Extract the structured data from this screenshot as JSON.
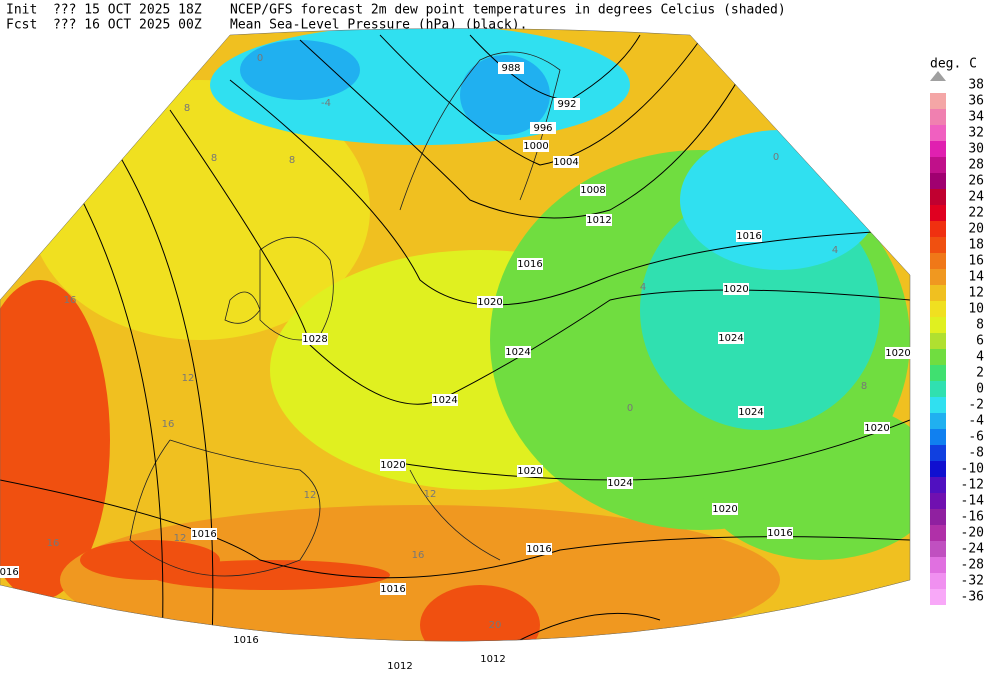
{
  "header": {
    "lines": [
      "Init  ??? 15 OCT 2025 18Z",
      "Fcst  ??? 16 OCT 2025 00Z"
    ],
    "description": [
      "NCEP/GFS forecast 2m dew point temperatures in degrees Celcius (shaded)",
      "Mean Sea-Level Pressure (hPa) (black)."
    ]
  },
  "legend": {
    "unit": "deg. C",
    "levels": [
      38,
      36,
      34,
      32,
      30,
      28,
      26,
      24,
      22,
      20,
      18,
      16,
      14,
      12,
      10,
      8,
      6,
      4,
      2,
      0,
      -2,
      -4,
      -6,
      -8,
      -10,
      -12,
      -14,
      -16,
      -20,
      -24,
      -28,
      -32,
      -36
    ],
    "colors": [
      "#a0a0a0",
      "#f4a6a6",
      "#f080b0",
      "#f060c0",
      "#e020b0",
      "#c0108a",
      "#a00070",
      "#c00030",
      "#e00020",
      "#f03010",
      "#f05010",
      "#f07818",
      "#f09820",
      "#f0c020",
      "#f0e020",
      "#e0f020",
      "#b0e030",
      "#70dd40",
      "#40e070",
      "#30e0b0",
      "#30e0f0",
      "#20b0f0",
      "#1080f0",
      "#1040e0",
      "#1010d0",
      "#5010c0",
      "#7010b0",
      "#9020a0",
      "#b030a8",
      "#c050c0",
      "#e070e0",
      "#f090f0",
      "#f8a8f8"
    ]
  },
  "map": {
    "pressure_labels": [
      988,
      992,
      996,
      1000,
      1004,
      1008,
      1012,
      1016,
      1016,
      1020,
      1020,
      1024,
      1024,
      1020,
      1028,
      1024,
      1024,
      1020,
      1020,
      1020,
      1024,
      1020,
      1016,
      1016,
      1016,
      1016,
      1016,
      1012,
      1012,
      1016
    ],
    "dewpoint_labels": [
      0,
      -4,
      8,
      8,
      8,
      16,
      12,
      16,
      12,
      12,
      16,
      12,
      16,
      20,
      4,
      0,
      4,
      0,
      8
    ]
  }
}
